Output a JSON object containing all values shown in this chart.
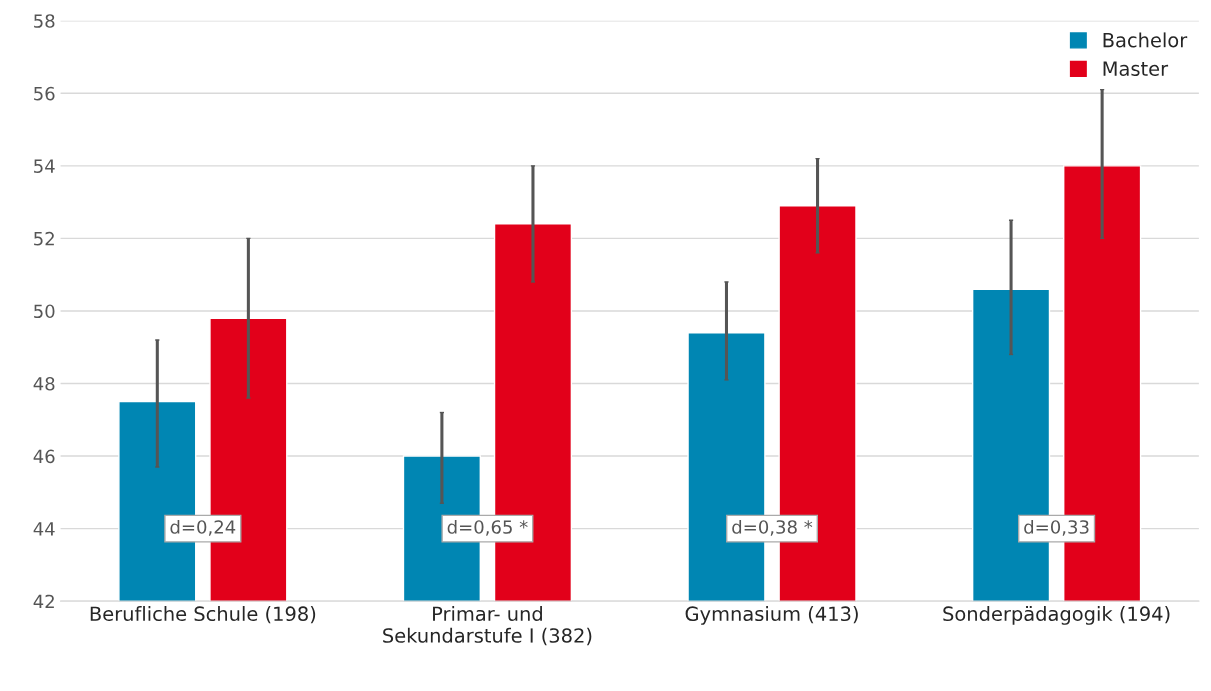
{
  "chart_data": {
    "type": "bar",
    "categories": [
      "Berufliche Schule (198)",
      "Primar- und\nSekundarstufe I (382)",
      "Gymnasium (413)",
      "Sonderpädagogik (194)"
    ],
    "series": [
      {
        "name": "Bachelor",
        "color": "#0086b3",
        "values": [
          47.5,
          46.0,
          49.4,
          50.6
        ],
        "errors": [
          [
            45.7,
            49.2
          ],
          [
            44.7,
            47.2
          ],
          [
            48.1,
            50.8
          ],
          [
            48.8,
            52.5
          ]
        ]
      },
      {
        "name": "Master",
        "color": "#e2001a",
        "values": [
          49.8,
          52.4,
          52.9,
          54.0
        ],
        "errors": [
          [
            47.6,
            52.0
          ],
          [
            50.8,
            54.0
          ],
          [
            51.6,
            54.2
          ],
          [
            52.0,
            56.1
          ]
        ]
      }
    ],
    "ylim": [
      42,
      58
    ],
    "yticks": [
      42,
      44,
      46,
      48,
      50,
      52,
      54,
      56,
      58
    ],
    "grid": "y",
    "legend": "top right",
    "annotations": [
      "d=0,24",
      "d=0,65 *",
      "d=0,38 *",
      "d=0,33"
    ]
  }
}
